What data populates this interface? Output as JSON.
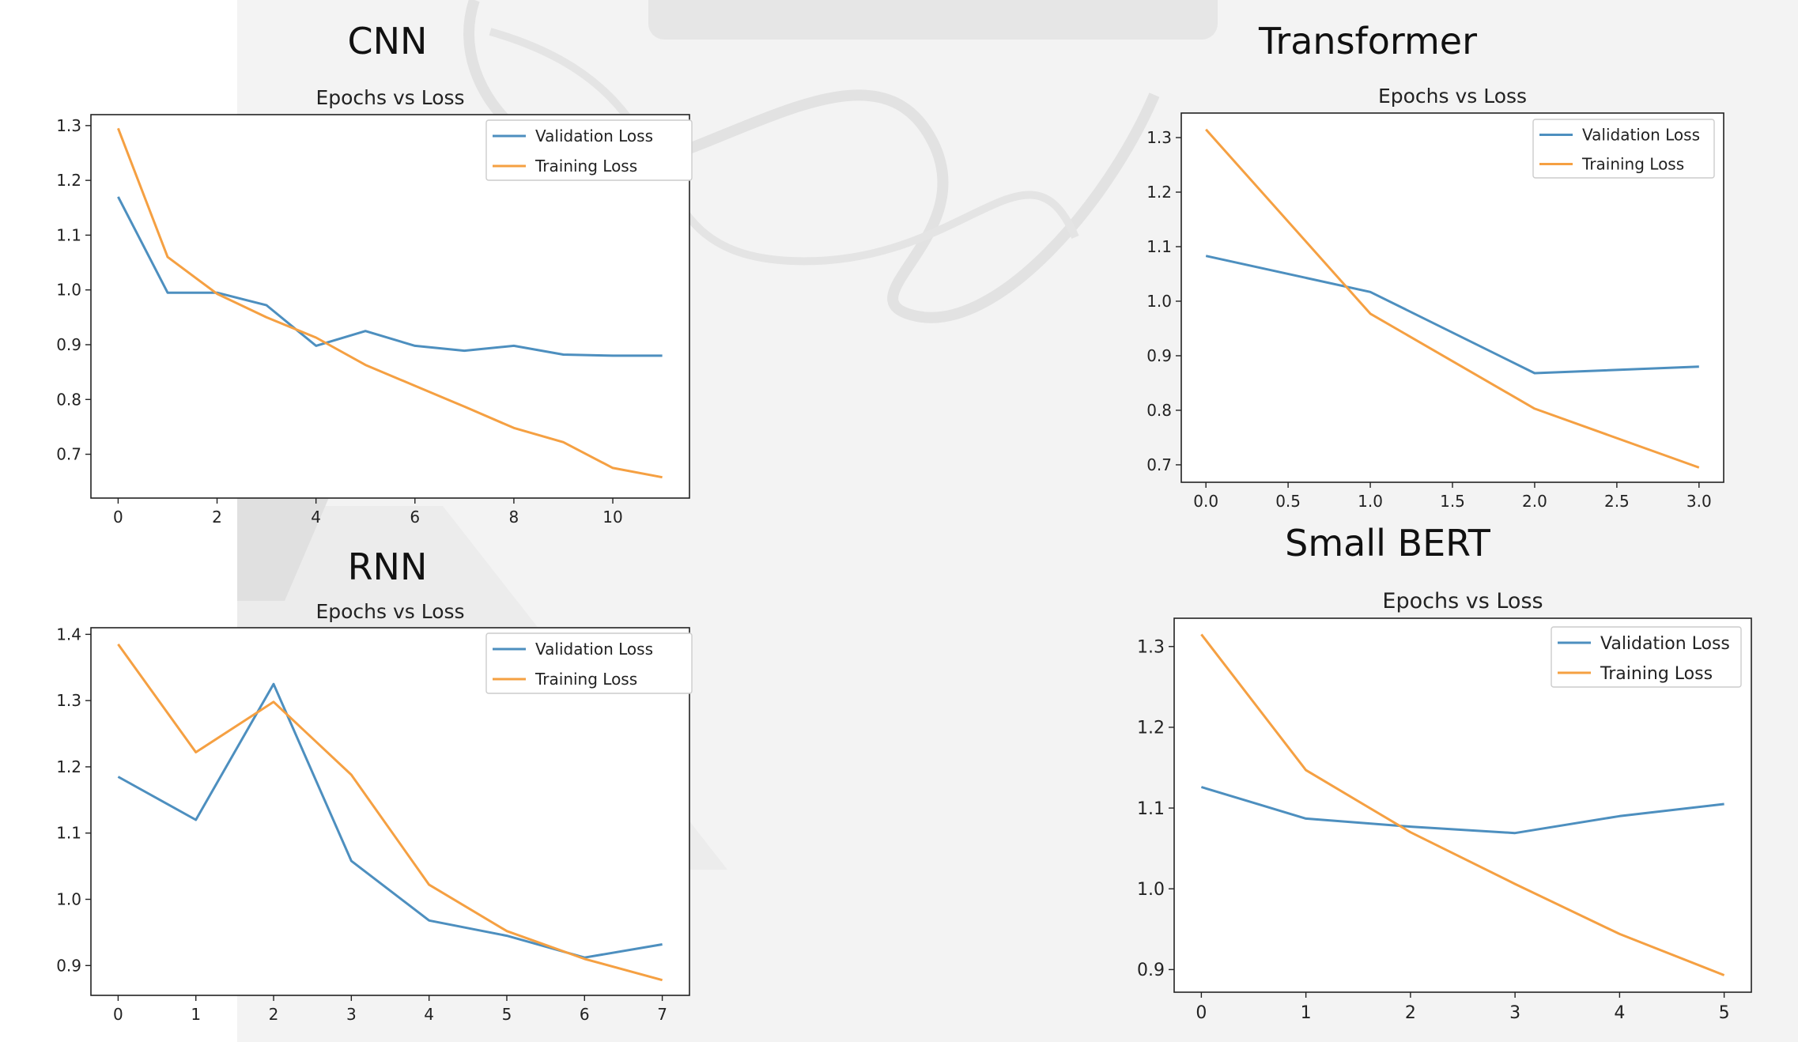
{
  "colors": {
    "validation": "#4d8fbf",
    "training": "#f5a042"
  },
  "panels": [
    {
      "heading": "CNN",
      "chart_data": {
        "type": "line",
        "title": "Epochs vs Loss",
        "xlabel": "",
        "ylabel": "",
        "x": [
          0,
          1,
          2,
          3,
          4,
          5,
          6,
          7,
          8,
          9,
          10,
          11
        ],
        "series": [
          {
            "name": "Validation Loss",
            "values": [
              1.17,
              0.995,
              0.995,
              0.972,
              0.898,
              0.925,
              0.898,
              0.889,
              0.898,
              0.882,
              0.88,
              0.88
            ]
          },
          {
            "name": "Training Loss",
            "values": [
              1.295,
              1.06,
              0.993,
              0.95,
              0.913,
              0.863,
              0.825,
              0.787,
              0.748,
              0.722,
              0.675,
              0.658
            ]
          }
        ],
        "xlim": [
          -0.55,
          11.55
        ],
        "ylim": [
          0.62,
          1.32
        ],
        "xticks": [
          0,
          2,
          4,
          6,
          8,
          10
        ],
        "xtick_labels": [
          "0",
          "2",
          "4",
          "6",
          "8",
          "10"
        ],
        "yticks": [
          0.7,
          0.8,
          0.9,
          1.0,
          1.1,
          1.2,
          1.3
        ],
        "ytick_labels": [
          "0.7",
          "0.8",
          "0.9",
          "1.0",
          "1.1",
          "1.2",
          "1.3"
        ],
        "grid": false,
        "legend": "top-right"
      }
    },
    {
      "heading": "Transformer",
      "chart_data": {
        "type": "line",
        "title": "Epochs vs Loss",
        "xlabel": "",
        "ylabel": "",
        "x": [
          0,
          1,
          2,
          3
        ],
        "series": [
          {
            "name": "Validation Loss",
            "values": [
              1.083,
              1.017,
              0.868,
              0.88
            ]
          },
          {
            "name": "Training Loss",
            "values": [
              1.315,
              0.977,
              0.803,
              0.695
            ]
          }
        ],
        "xlim": [
          -0.15,
          3.15
        ],
        "ylim": [
          0.668,
          1.345
        ],
        "xticks": [
          0,
          0.5,
          1,
          1.5,
          2,
          2.5,
          3
        ],
        "xtick_labels": [
          "0.0",
          "0.5",
          "1.0",
          "1.5",
          "2.0",
          "2.5",
          "3.0"
        ],
        "yticks": [
          0.7,
          0.8,
          0.9,
          1.0,
          1.1,
          1.2,
          1.3
        ],
        "ytick_labels": [
          "0.7",
          "0.8",
          "0.9",
          "1.0",
          "1.1",
          "1.2",
          "1.3"
        ],
        "grid": false,
        "legend": "top-right"
      }
    },
    {
      "heading": "RNN",
      "chart_data": {
        "type": "line",
        "title": "Epochs vs Loss",
        "xlabel": "",
        "ylabel": "",
        "x": [
          0,
          1,
          2,
          3,
          4,
          5,
          6,
          7
        ],
        "series": [
          {
            "name": "Validation Loss",
            "values": [
              1.185,
              1.12,
              1.325,
              1.058,
              0.968,
              0.945,
              0.912,
              0.932
            ]
          },
          {
            "name": "Training Loss",
            "values": [
              1.385,
              1.222,
              1.298,
              1.188,
              1.022,
              0.952,
              0.91,
              0.878
            ]
          }
        ],
        "xlim": [
          -0.35,
          7.35
        ],
        "ylim": [
          0.855,
          1.41
        ],
        "xticks": [
          0,
          1,
          2,
          3,
          4,
          5,
          6,
          7
        ],
        "xtick_labels": [
          "0",
          "1",
          "2",
          "3",
          "4",
          "5",
          "6",
          "7"
        ],
        "yticks": [
          0.9,
          1.0,
          1.1,
          1.2,
          1.3,
          1.4
        ],
        "ytick_labels": [
          "0.9",
          "1.0",
          "1.1",
          "1.2",
          "1.3",
          "1.4"
        ],
        "grid": false,
        "legend": "top-right"
      }
    },
    {
      "heading": "Small BERT",
      "chart_data": {
        "type": "line",
        "title": "Epochs vs Loss",
        "xlabel": "",
        "ylabel": "",
        "x": [
          0,
          1,
          2,
          3,
          4,
          5
        ],
        "series": [
          {
            "name": "Validation Loss",
            "values": [
              1.126,
              1.087,
              1.077,
              1.069,
              1.09,
              1.105
            ]
          },
          {
            "name": "Training Loss",
            "values": [
              1.315,
              1.147,
              1.07,
              1.006,
              0.944,
              0.893
            ]
          }
        ],
        "xlim": [
          -0.26,
          5.26
        ],
        "ylim": [
          0.872,
          1.335
        ],
        "xticks": [
          0,
          1,
          2,
          3,
          4,
          5
        ],
        "xtick_labels": [
          "0",
          "1",
          "2",
          "3",
          "4",
          "5"
        ],
        "yticks": [
          0.9,
          1.0,
          1.1,
          1.2,
          1.3
        ],
        "ytick_labels": [
          "0.9",
          "1.0",
          "1.1",
          "1.2",
          "1.3"
        ],
        "grid": false,
        "legend": "top-right"
      }
    }
  ]
}
